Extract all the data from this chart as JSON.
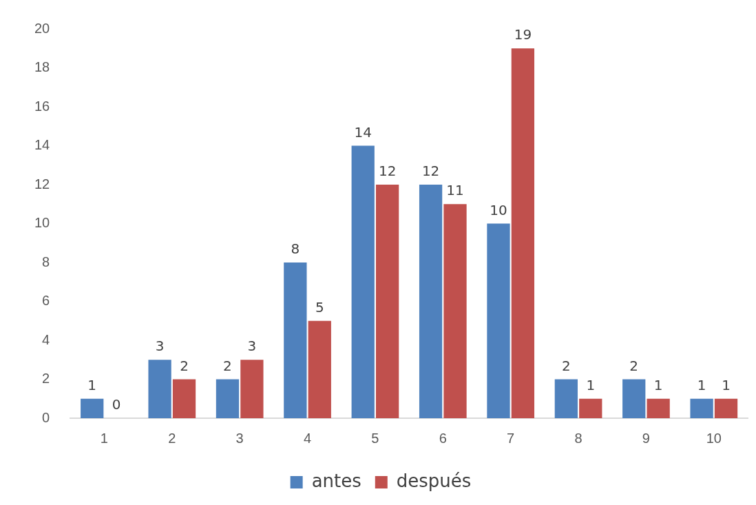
{
  "chart_data": {
    "type": "bar",
    "categories": [
      "1",
      "2",
      "3",
      "4",
      "5",
      "6",
      "7",
      "8",
      "9",
      "10"
    ],
    "series": [
      {
        "name": "antes",
        "color": "#4f81bd",
        "values": [
          1,
          3,
          2,
          8,
          14,
          12,
          10,
          2,
          2,
          1
        ]
      },
      {
        "name": "después",
        "color": "#c0504d",
        "values": [
          0,
          2,
          3,
          5,
          12,
          11,
          19,
          1,
          1,
          1
        ]
      }
    ],
    "ylim": [
      0,
      20
    ],
    "yticks": [
      0,
      2,
      4,
      6,
      8,
      10,
      12,
      14,
      16,
      18,
      20
    ],
    "grid": false,
    "legend": "bottom",
    "data_labels": true
  }
}
